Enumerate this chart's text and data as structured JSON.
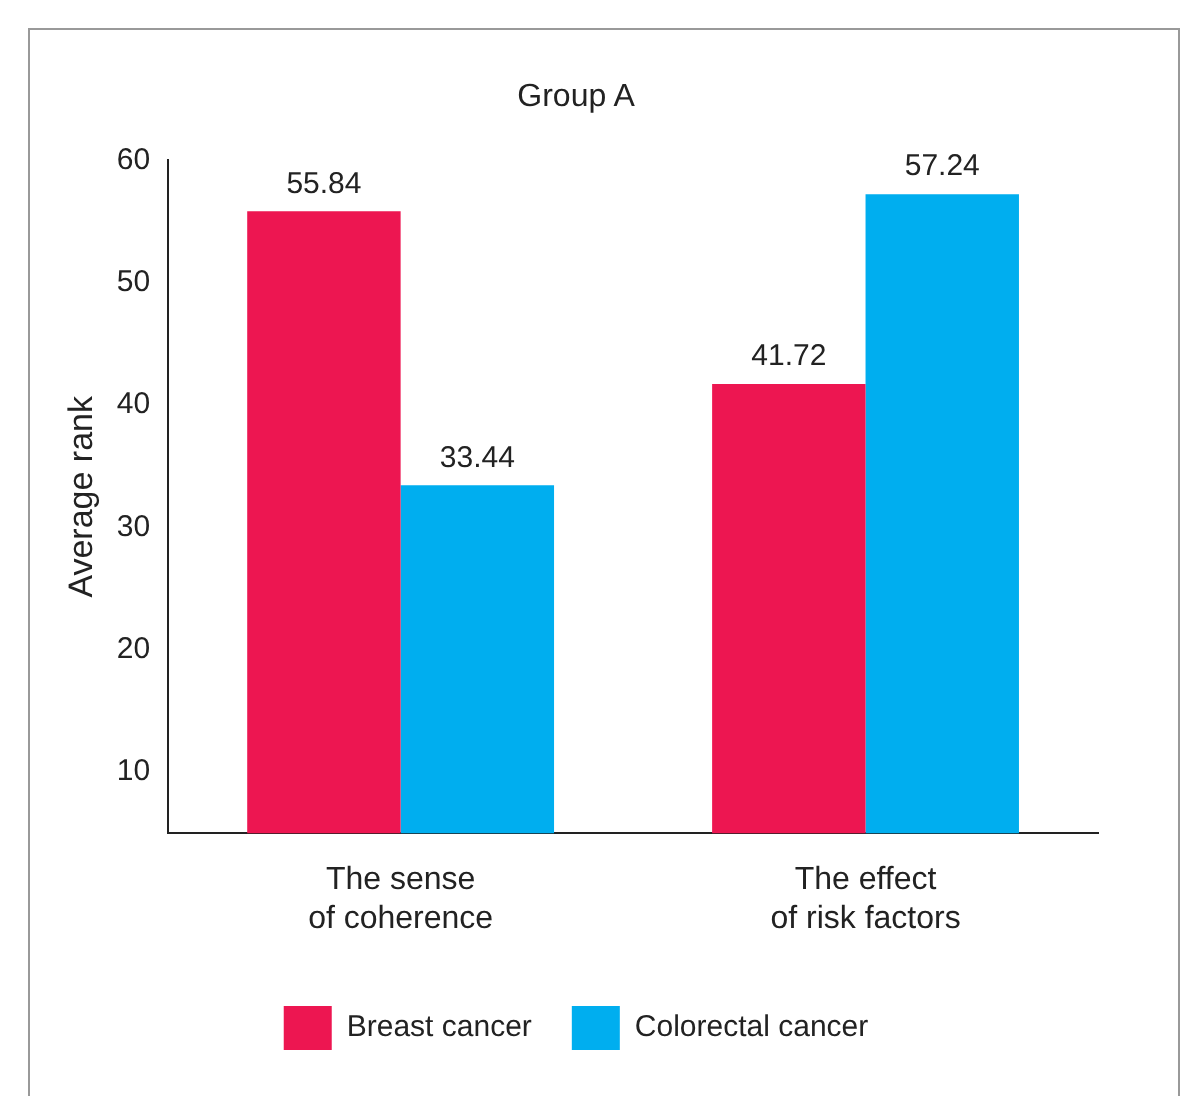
{
  "chart_data": {
    "type": "bar",
    "title": "Group A",
    "ylabel": "Average rank",
    "categories": [
      "The sense\nof coherence",
      "The effect\nof risk factors"
    ],
    "series": [
      {
        "name": "Breast cancer",
        "color": "#ed1651",
        "values": [
          55.84,
          41.72
        ]
      },
      {
        "name": "Colorectal cancer",
        "color": "#00aeef",
        "values": [
          33.44,
          57.24
        ]
      }
    ],
    "ylim": [
      5,
      60
    ],
    "yticks": [
      10,
      20,
      30,
      40,
      50,
      60
    ],
    "grid": false,
    "legend": "bottom",
    "data_labels": true
  }
}
